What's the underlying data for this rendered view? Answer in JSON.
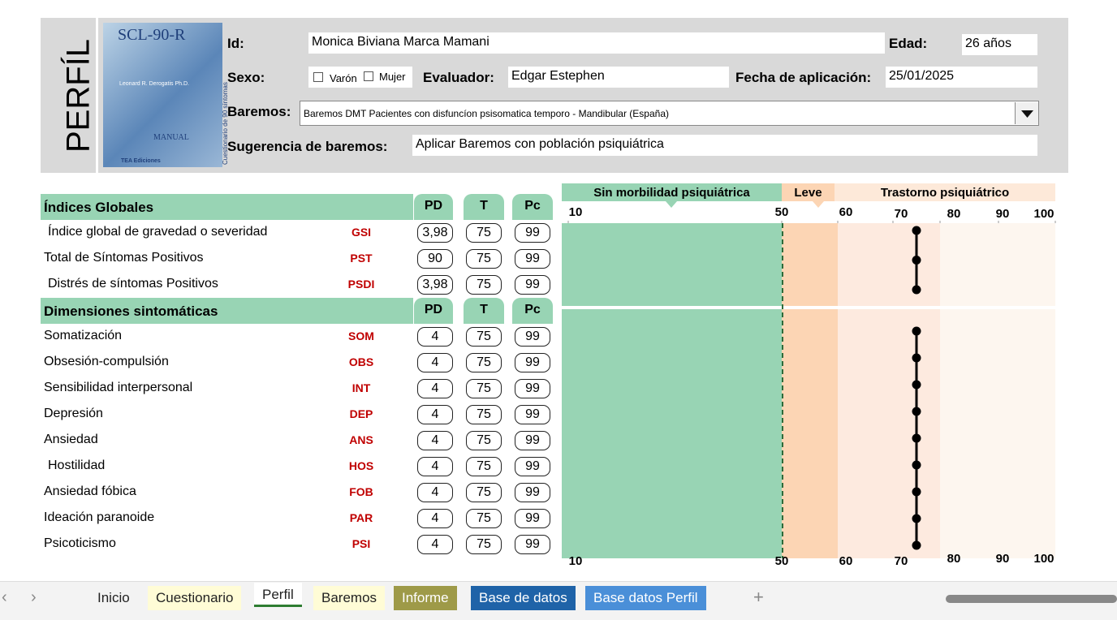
{
  "header": {
    "side_title": "PERFÍL",
    "logo": {
      "title": "SCL-90-R",
      "author": "Leonard R. Derogatis Ph.D.",
      "manual": "MANUAL",
      "subtitle": "Cuestionario de 90 síntomas",
      "publisher": "TEA Ediciones"
    },
    "fields": {
      "id_label": "Id:",
      "id": "Monica Biviana Marca Mamani",
      "edad_label": "Edad:",
      "edad": "26 años",
      "sexo_label": "Sexo:",
      "varon": "Varón",
      "mujer": "Mujer",
      "evaluador_label": "Evaluador:",
      "evaluador": "Edgar Estephen",
      "fecha_label": "Fecha de aplicación:",
      "fecha": "25/01/2025",
      "baremos_label": "Baremos:",
      "baremos": "Baremos DMT Pacientes con disfuncíon psisomatica temporo - Mandibular (España)",
      "sugerencia_label": "Sugerencia de baremos:",
      "sugerencia": "Aplicar Baremos con población psiquiátrica"
    }
  },
  "profile": {
    "zones": [
      "Sin morbilidad psiquiátrica",
      "Leve",
      "Trastorno psiquiátrico"
    ],
    "scale_ticks": [
      10,
      50,
      60,
      70,
      80,
      90,
      100
    ],
    "columns": [
      "PD",
      "T",
      "Pc"
    ],
    "sections": [
      {
        "title": "Índices Globales",
        "rows": [
          {
            "name": "Índice global de gravedad o severidad",
            "code": "GSI",
            "pd": "3,98",
            "t": 75,
            "pc": 99
          },
          {
            "name": "Total de Síntomas Positivos",
            "code": "PST",
            "pd": 90,
            "t": 75,
            "pc": 99
          },
          {
            "name": "Distrés de síntomas Positivos",
            "code": "PSDI",
            "pd": "3,98",
            "t": 75,
            "pc": 99
          }
        ]
      },
      {
        "title": "Dimensiones sintomáticas",
        "rows": [
          {
            "name": "Somatización",
            "code": "SOM",
            "pd": 4,
            "t": 75,
            "pc": 99
          },
          {
            "name": "Obsesión-compulsión",
            "code": "OBS",
            "pd": 4,
            "t": 75,
            "pc": 99
          },
          {
            "name": "Sensibilidad interpersonal",
            "code": "INT",
            "pd": 4,
            "t": 75,
            "pc": 99
          },
          {
            "name": "Depresión",
            "code": "DEP",
            "pd": 4,
            "t": 75,
            "pc": 99
          },
          {
            "name": "Ansiedad",
            "code": "ANS",
            "pd": 4,
            "t": 75,
            "pc": 99
          },
          {
            "name": "Hostilidad",
            "code": "HOS",
            "pd": 4,
            "t": 75,
            "pc": 99
          },
          {
            "name": "Ansiedad fóbica",
            "code": "FOB",
            "pd": 4,
            "t": 75,
            "pc": 99
          },
          {
            "name": "Ideación paranoide",
            "code": "PAR",
            "pd": 4,
            "t": 75,
            "pc": 99
          },
          {
            "name": "Psicoticismo",
            "code": "PSI",
            "pd": 4,
            "t": 75,
            "pc": 99
          }
        ]
      }
    ]
  },
  "tabs": [
    "Inicio",
    "Cuestionario",
    "Perfil",
    "Baremos",
    "Informe",
    "Base de datos",
    "Base datos Perfil"
  ]
}
